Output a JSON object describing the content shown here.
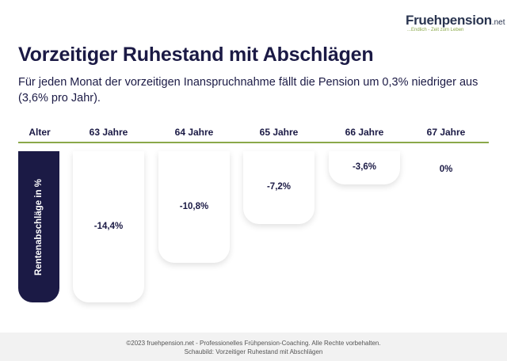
{
  "logo": {
    "name": "Fruehpension",
    "tld": ".net",
    "tagline": "...Endlich - Zeit zum Leben"
  },
  "title": "Vorzeitiger Ruhestand mit Abschlägen",
  "subtitle": "Für jeden Monat der vorzeitigen Inanspruchnahme fällt die Pension um 0,3% niedriger aus (3,6% pro Jahr).",
  "colors": {
    "primary": "#1b1a45",
    "accent": "#8aa84a",
    "footer_bg": "#f2f2f2"
  },
  "chart_data": {
    "type": "bar",
    "x_header": "Alter",
    "ylabel": "Rentenabschläge in %",
    "categories": [
      "63 Jahre",
      "64 Jahre",
      "65 Jahre",
      "66 Jahre",
      "67 Jahre"
    ],
    "values": [
      -14.4,
      -10.8,
      -7.2,
      -3.6,
      0
    ],
    "labels": [
      "-14,4%",
      "-10,8%",
      "-7,2%",
      "-3,6%",
      "0%"
    ]
  },
  "footer": {
    "line1": "©2023 fruehpension.net - Professionelles Frühpension-Coaching. Alle Rechte vorbehalten.",
    "line2": "Schaubild: Vorzeitiger Ruhestand mit Abschlägen"
  }
}
